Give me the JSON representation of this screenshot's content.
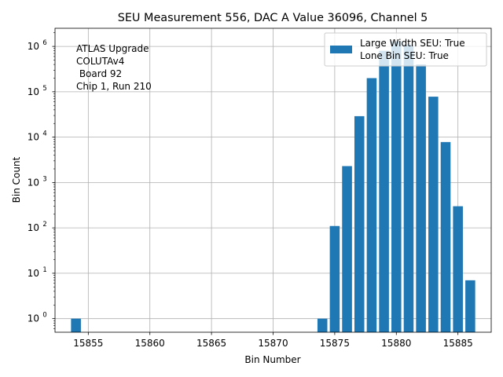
{
  "chart_data": {
    "type": "bar",
    "title": "SEU Measurement 556, DAC A Value 36096, Channel 5",
    "xlabel": "Bin Number",
    "ylabel": "Bin Count",
    "yscale": "log",
    "xlim": [
      15852.3,
      15887.7
    ],
    "ylim_exp": [
      -0.3,
      6.4
    ],
    "grid": true,
    "x_ticks": [
      15855,
      15860,
      15865,
      15870,
      15875,
      15880,
      15885
    ],
    "y_tick_exponents": [
      0,
      1,
      2,
      3,
      4,
      5,
      6
    ],
    "y_tick_base": "10",
    "bars": [
      {
        "x": 15854,
        "value": 1
      },
      {
        "x": 15874,
        "value": 1
      },
      {
        "x": 15875,
        "value": 110
      },
      {
        "x": 15876,
        "value": 2300
      },
      {
        "x": 15877,
        "value": 29000
      },
      {
        "x": 15878,
        "value": 200000
      },
      {
        "x": 15879,
        "value": 800000
      },
      {
        "x": 15880,
        "value": 1300000
      },
      {
        "x": 15881,
        "value": 1100000
      },
      {
        "x": 15882,
        "value": 400000
      },
      {
        "x": 15883,
        "value": 78000
      },
      {
        "x": 15884,
        "value": 7800
      },
      {
        "x": 15885,
        "value": 300
      },
      {
        "x": 15886,
        "value": 7
      }
    ],
    "bar_color": "#1f77b4",
    "legend": {
      "location": "top-right",
      "lines": [
        "Large Width SEU: True",
        "Lone Bin SEU: True"
      ]
    },
    "annotation": {
      "location": "top-left",
      "lines": [
        "ATLAS Upgrade",
        "COLUTAv4",
        " Board 92",
        "Chip 1, Run 210"
      ]
    }
  }
}
